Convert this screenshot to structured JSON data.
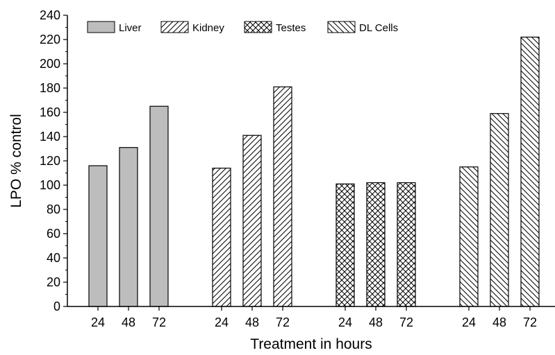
{
  "chart_data": {
    "type": "bar",
    "title": "",
    "xlabel": "Treatment in hours",
    "ylabel": "LPO % control",
    "ylim": [
      0,
      240
    ],
    "yticks": [
      0,
      20,
      40,
      60,
      80,
      100,
      120,
      140,
      160,
      180,
      200,
      220,
      240
    ],
    "categories": [
      "24",
      "48",
      "72"
    ],
    "legend_position": "top",
    "grid": false,
    "series": [
      {
        "name": "Liver",
        "values": [
          116,
          131,
          165
        ],
        "fill": "solid",
        "color": "#bdbdbd"
      },
      {
        "name": "Kidney",
        "values": [
          114,
          141,
          181
        ],
        "fill": "diagonal-up",
        "color": "#ffffff"
      },
      {
        "name": "Testes",
        "values": [
          101,
          102,
          102
        ],
        "fill": "crosshatch",
        "color": "#ffffff"
      },
      {
        "name": "DL Cells",
        "values": [
          115,
          159,
          222
        ],
        "fill": "diagonal-down",
        "color": "#ffffff"
      }
    ]
  }
}
